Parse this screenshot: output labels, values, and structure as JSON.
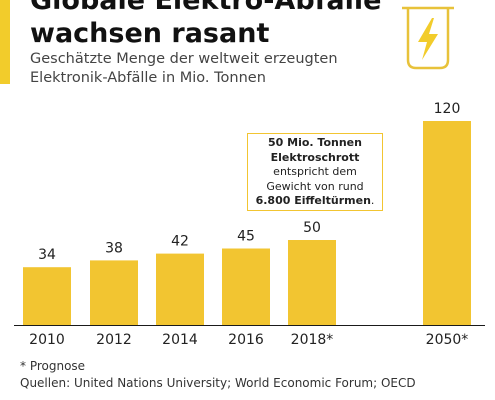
{
  "header": {
    "title": "Globale Elektro-Abfälle\nwachsen rasant",
    "subtitle": "Geschätzte Menge der weltweit erzeugten\nElektronik-Abfälle in Mio. Tonnen"
  },
  "icons": {
    "header_icon": "e-waste-bin-lightning-icon"
  },
  "colors": {
    "bar": "#f2c531",
    "accent": "#f2cc2b",
    "icon_stroke": "#e8c23a"
  },
  "callout": {
    "line1": "50 Mio. Tonnen",
    "line2": "Elektroschrott",
    "line3": "entspricht dem",
    "line4": "Gewicht von rund",
    "line5_bold": "6.800 Eiffeltürmen",
    "line5_tail": "."
  },
  "footer": {
    "note": "* Prognose",
    "sources": "Quellen: United Nations University; World Economic Forum; OECD"
  },
  "chart_data": {
    "type": "bar",
    "title": "Globale Elektro-Abfälle wachsen rasant",
    "subtitle": "Geschätzte Menge der weltweit erzeugten Elektronik-Abfälle in Mio. Tonnen",
    "categories": [
      "2010",
      "2012",
      "2014",
      "2016",
      "2018*",
      "2050*"
    ],
    "values": [
      34,
      38,
      42,
      45,
      50,
      120
    ],
    "unit": "Mio. Tonnen",
    "ylim": [
      0,
      120
    ],
    "grid": false
  }
}
